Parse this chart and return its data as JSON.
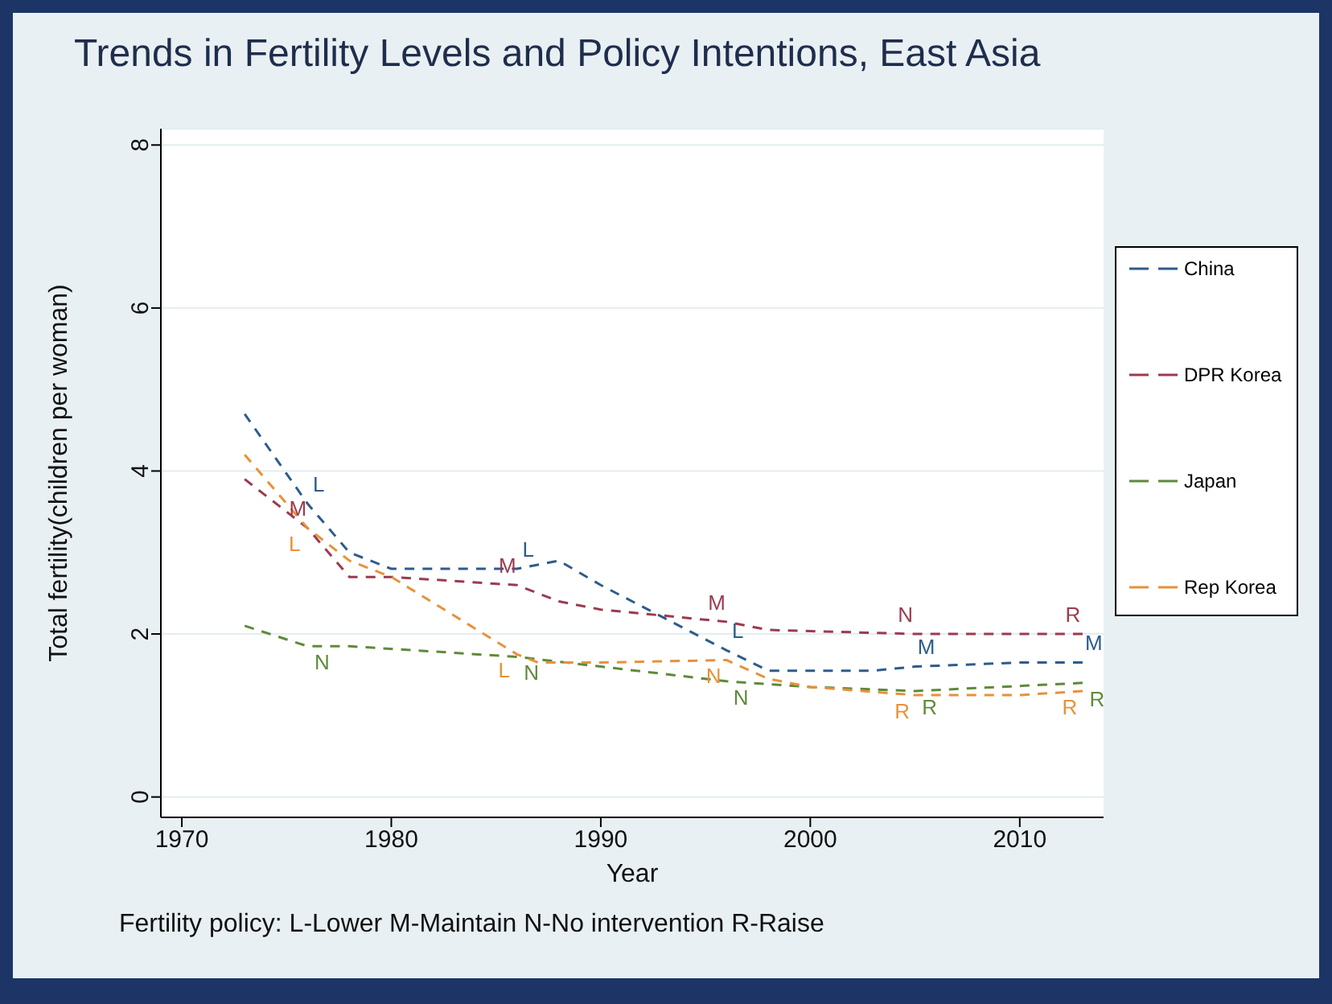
{
  "chart_data": {
    "type": "line",
    "title": "Trends in Fertility Levels and Policy Intentions, East Asia",
    "xlabel": "Year",
    "ylabel": "Total fertility(children per woman)",
    "series": [
      {
        "name": "China",
        "color": "#2e5c8a",
        "x": [
          1973,
          1976,
          1978,
          1980,
          1986,
          1988,
          1990,
          1996,
          1998,
          2000,
          2003,
          2005,
          2010,
          2013
        ],
        "values": [
          4.7,
          3.6,
          3.0,
          2.8,
          2.8,
          2.9,
          2.6,
          1.8,
          1.55,
          1.55,
          1.55,
          1.6,
          1.65,
          1.65
        ]
      },
      {
        "name": "DPR Korea",
        "color": "#9b3b4f",
        "x": [
          1973,
          1976,
          1978,
          1980,
          1986,
          1988,
          1990,
          1996,
          1998,
          2005,
          2013
        ],
        "values": [
          3.9,
          3.3,
          2.7,
          2.7,
          2.6,
          2.4,
          2.3,
          2.15,
          2.05,
          2.0,
          2.0
        ]
      },
      {
        "name": "Japan",
        "color": "#5f8a3a",
        "x": [
          1973,
          1976,
          1978,
          1986,
          1990,
          1996,
          2000,
          2005,
          2013
        ],
        "values": [
          2.1,
          1.85,
          1.85,
          1.72,
          1.6,
          1.42,
          1.35,
          1.3,
          1.4
        ]
      },
      {
        "name": "Rep Korea",
        "color": "#e8913a",
        "x": [
          1973,
          1976,
          1978,
          1980,
          1986,
          1987,
          1990,
          1996,
          1998,
          2000,
          2005,
          2010,
          2013
        ],
        "values": [
          4.2,
          3.3,
          2.9,
          2.7,
          1.75,
          1.65,
          1.65,
          1.68,
          1.45,
          1.35,
          1.25,
          1.25,
          1.3
        ]
      }
    ],
    "annotations": [
      {
        "text": "L",
        "x": 1976,
        "y": 3.6
      },
      {
        "text": "L",
        "x": 1986,
        "y": 2.8
      },
      {
        "text": "L",
        "x": 1996,
        "y": 1.8
      },
      {
        "text": "M",
        "x": 2005,
        "y": 1.6
      },
      {
        "text": "M",
        "x": 2013,
        "y": 1.65
      },
      {
        "text": "M",
        "x": 1976,
        "y": 3.3
      },
      {
        "text": "M",
        "x": 1986,
        "y": 2.6
      },
      {
        "text": "M",
        "x": 1996,
        "y": 2.15
      },
      {
        "text": "N",
        "x": 2005,
        "y": 2.0
      },
      {
        "text": "R",
        "x": 2013,
        "y": 2.0
      },
      {
        "text": "N",
        "x": 1976,
        "y": 1.85
      },
      {
        "text": "N",
        "x": 1986,
        "y": 1.72
      },
      {
        "text": "N",
        "x": 1996,
        "y": 1.42
      },
      {
        "text": "R",
        "x": 2005,
        "y": 1.3
      },
      {
        "text": "R",
        "x": 2013,
        "y": 1.4
      },
      {
        "text": "L",
        "x": 1976,
        "y": 3.3
      },
      {
        "text": "L",
        "x": 1986,
        "y": 1.75
      },
      {
        "text": "N",
        "x": 1996,
        "y": 1.68
      },
      {
        "text": "R",
        "x": 2005,
        "y": 1.25
      },
      {
        "text": "R",
        "x": 2013,
        "y": 1.3
      },
      "Fertility policy: L-Lower M-Maintain N-No intervention R-Raise"
    ],
    "xlim": [
      1969,
      2014
    ],
    "xticks": [
      1970,
      1980,
      1990,
      2000,
      2010
    ],
    "ylim": [
      -0.25,
      8.2
    ],
    "yticks": [
      0,
      2,
      4,
      6,
      8
    ],
    "grid": "y",
    "legend": "right",
    "line_style": "dashed",
    "marker": "none"
  }
}
